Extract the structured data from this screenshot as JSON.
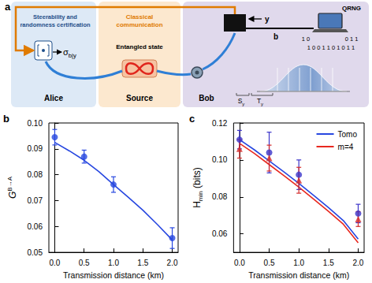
{
  "diagram": {
    "panel_label": "a",
    "alice": {
      "heading": [
        "Steerability and",
        "randomness certification"
      ],
      "name": "Alice",
      "output": {
        "base": "σ",
        "sub": "b|y"
      }
    },
    "source": {
      "heading": [
        "Classical",
        "communication"
      ],
      "state": "Entangled state",
      "name": "Source"
    },
    "bob": {
      "name": "Bob",
      "input": "y",
      "outcome": "b",
      "device": "QRNG",
      "bits": [
        "1 0",
        "0 1 1",
        "1 0 0 1 1 0 1 0 1 1"
      ],
      "s": {
        "base": "S",
        "sub": "y"
      },
      "t": {
        "base": "T",
        "sub": "y"
      }
    }
  },
  "chart_data": [
    {
      "type": "line",
      "panel_label": "b",
      "xlabel": "Transmission distance (km)",
      "ylabel": {
        "base": "G",
        "sup": "B→A"
      },
      "xlim": [
        -0.1,
        2.1
      ],
      "xticks": [
        {
          "value": 0,
          "label": "0.0"
        },
        0.5,
        {
          "value": 1,
          "label": "1.0"
        },
        1.5,
        {
          "value": 2,
          "label": "2.0"
        }
      ],
      "ylim": [
        0.05,
        0.1
      ],
      "yticks": [
        0.05,
        0.06,
        0.07,
        0.08,
        0.09,
        {
          "value": 0.1,
          "label": "0.10"
        }
      ],
      "grid": false,
      "series": [
        {
          "type": "line",
          "color": "#2747e0",
          "line_style": "solid",
          "x": [
            0,
            0.25,
            0.5,
            0.75,
            1,
            1.25,
            1.5,
            1.75,
            2
          ],
          "values": [
            0.0925,
            0.0892,
            0.0856,
            0.0812,
            0.0762,
            0.0713,
            0.0663,
            0.0607,
            0.0548
          ]
        },
        {
          "type": "scatter",
          "color": "#2747e0",
          "marker": "circle",
          "x": [
            0,
            0.5,
            1,
            2
          ],
          "values": [
            0.0945,
            0.087,
            0.0762,
            0.0555
          ],
          "errors": [
            0.003,
            0.0025,
            0.003,
            0.004
          ]
        }
      ]
    },
    {
      "type": "line",
      "panel_label": "c",
      "xlabel": "Transmission distance (km)",
      "ylabel": {
        "base": "H",
        "sub": "min",
        "suffix": " (bits)"
      },
      "xlim": [
        -0.1,
        2.1
      ],
      "xticks": [
        {
          "value": 0,
          "label": "0.0"
        },
        0.5,
        {
          "value": 1,
          "label": "1.0"
        },
        1.5,
        {
          "value": 2,
          "label": "2.0"
        }
      ],
      "ylim": [
        0.05,
        0.12
      ],
      "yticks": [
        0.06,
        0.08,
        {
          "value": 0.1,
          "label": "0.10"
        },
        0.12
      ],
      "grid": false,
      "legend": "upper right",
      "series": [
        {
          "type": "line",
          "name": "Tomo",
          "color": "#2747e0",
          "line_style": "solid",
          "x": [
            0,
            0.25,
            0.5,
            0.75,
            1,
            1.25,
            1.5,
            1.75,
            2
          ],
          "values": [
            0.111,
            0.1055,
            0.0995,
            0.0935,
            0.0873,
            0.0808,
            0.0742,
            0.0672,
            0.0572
          ]
        },
        {
          "type": "line",
          "name": "m=4",
          "color": "#e8281f",
          "line_style": "solid",
          "x": [
            0,
            0.25,
            0.5,
            0.75,
            1,
            1.25,
            1.5,
            1.75,
            2
          ],
          "values": [
            0.109,
            0.1035,
            0.0975,
            0.0915,
            0.0853,
            0.0788,
            0.0722,
            0.0652,
            0.0552
          ]
        },
        {
          "type": "scatter",
          "color": "#3b34c9",
          "marker": "circle",
          "x": [
            0,
            0.5,
            1,
            2
          ],
          "values": [
            0.111,
            0.104,
            0.092,
            0.071
          ],
          "errors": [
            0.005,
            0.011,
            0.008,
            0.005
          ]
        },
        {
          "type": "scatter",
          "color": "#d42a2a",
          "marker": "triangle",
          "x": [
            0,
            0.5,
            1,
            2
          ],
          "values": [
            0.106,
            0.101,
            0.089,
            0.068
          ],
          "errors": [
            0.005,
            0.007,
            0.007,
            0.004
          ]
        }
      ]
    }
  ]
}
